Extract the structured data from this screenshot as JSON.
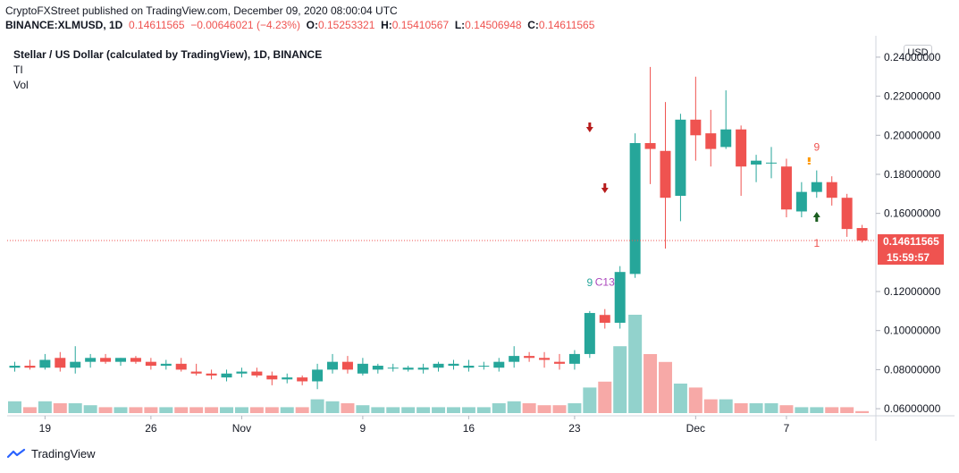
{
  "header": {
    "published_line": "CryptoFXStreet published on TradingView.com, December 09, 2020 08:00:04 UTC",
    "symbol": "BINANCE:XLMUSD, 1D",
    "price": "0.14611565",
    "change": "−0.00646021 (−4.23%)",
    "o_label": "O:",
    "o_value": "0.15253321",
    "h_label": "H:",
    "h_value": "0.15410567",
    "l_label": "L:",
    "l_value": "0.14506948",
    "c_label": "C:",
    "c_value": "0.14611565"
  },
  "legend": {
    "title": "Stellar / US Dollar (calculated by TradingView), 1D, BINANCE",
    "indicator": "TI",
    "volume": "Vol"
  },
  "currency_button": "USD",
  "price_tag": {
    "price": "0.14611565",
    "countdown": "15:59:57"
  },
  "brand": {
    "name": "TradingView"
  },
  "colors": {
    "up": "#26a69a",
    "down": "#ef5350",
    "vol_up": "#92d2cc",
    "vol_down": "#f7a9a7",
    "td_green": "#26a69a",
    "td_red": "#ef5350",
    "td_orange": "#ff9800",
    "td_purple": "#ab47bc"
  },
  "chart_data": {
    "type": "candlestick",
    "y_axis": {
      "ylim": [
        0.055,
        0.245
      ],
      "ticks": [
        "0.24000000",
        "0.22000000",
        "0.20000000",
        "0.18000000",
        "0.16000000",
        "0.12000000",
        "0.10000000",
        "0.08000000",
        "0.06000000"
      ]
    },
    "x_axis": {
      "ticks": [
        {
          "label": "19",
          "index": 2
        },
        {
          "label": "26",
          "index": 9
        },
        {
          "label": "Nov",
          "index": 15
        },
        {
          "label": "9",
          "index": 23
        },
        {
          "label": "16",
          "index": 30
        },
        {
          "label": "23",
          "index": 37
        },
        {
          "label": "Dec",
          "index": 45
        },
        {
          "label": "7",
          "index": 51
        }
      ]
    },
    "last_price": 0.14611565,
    "candles": [
      [
        0.081,
        0.084,
        0.079,
        0.082
      ],
      [
        0.082,
        0.085,
        0.08,
        0.081
      ],
      [
        0.081,
        0.088,
        0.08,
        0.085
      ],
      [
        0.086,
        0.089,
        0.079,
        0.081
      ],
      [
        0.081,
        0.092,
        0.078,
        0.084
      ],
      [
        0.084,
        0.088,
        0.081,
        0.086
      ],
      [
        0.086,
        0.088,
        0.083,
        0.084
      ],
      [
        0.084,
        0.086,
        0.082,
        0.086
      ],
      [
        0.086,
        0.087,
        0.083,
        0.084
      ],
      [
        0.084,
        0.086,
        0.08,
        0.082
      ],
      [
        0.082,
        0.085,
        0.08,
        0.083
      ],
      [
        0.083,
        0.086,
        0.079,
        0.08
      ],
      [
        0.079,
        0.083,
        0.077,
        0.078
      ],
      [
        0.078,
        0.08,
        0.075,
        0.077
      ],
      [
        0.076,
        0.08,
        0.074,
        0.078
      ],
      [
        0.078,
        0.081,
        0.076,
        0.079
      ],
      [
        0.079,
        0.081,
        0.076,
        0.077
      ],
      [
        0.077,
        0.079,
        0.072,
        0.075
      ],
      [
        0.075,
        0.078,
        0.073,
        0.076
      ],
      [
        0.076,
        0.077,
        0.072,
        0.074
      ],
      [
        0.074,
        0.083,
        0.07,
        0.08
      ],
      [
        0.08,
        0.088,
        0.078,
        0.084
      ],
      [
        0.084,
        0.087,
        0.078,
        0.08
      ],
      [
        0.078,
        0.086,
        0.077,
        0.083
      ],
      [
        0.08,
        0.083,
        0.078,
        0.082
      ],
      [
        0.081,
        0.083,
        0.079,
        0.081
      ],
      [
        0.08,
        0.082,
        0.079,
        0.081
      ],
      [
        0.08,
        0.083,
        0.078,
        0.081
      ],
      [
        0.081,
        0.084,
        0.079,
        0.083
      ],
      [
        0.082,
        0.085,
        0.08,
        0.083
      ],
      [
        0.081,
        0.085,
        0.079,
        0.082
      ],
      [
        0.082,
        0.084,
        0.08,
        0.082
      ],
      [
        0.081,
        0.086,
        0.079,
        0.084
      ],
      [
        0.084,
        0.092,
        0.081,
        0.087
      ],
      [
        0.087,
        0.089,
        0.084,
        0.086
      ],
      [
        0.086,
        0.089,
        0.081,
        0.085
      ],
      [
        0.084,
        0.088,
        0.08,
        0.083
      ],
      [
        0.083,
        0.09,
        0.08,
        0.088
      ],
      [
        0.088,
        0.11,
        0.086,
        0.109
      ],
      [
        0.108,
        0.111,
        0.101,
        0.104
      ],
      [
        0.104,
        0.133,
        0.101,
        0.13
      ],
      [
        0.129,
        0.201,
        0.127,
        0.196
      ],
      [
        0.196,
        0.235,
        0.175,
        0.193
      ],
      [
        0.192,
        0.217,
        0.142,
        0.168
      ],
      [
        0.169,
        0.211,
        0.156,
        0.208
      ],
      [
        0.208,
        0.23,
        0.187,
        0.2
      ],
      [
        0.201,
        0.213,
        0.184,
        0.193
      ],
      [
        0.194,
        0.223,
        0.193,
        0.203
      ],
      [
        0.203,
        0.205,
        0.169,
        0.184
      ],
      [
        0.185,
        0.19,
        0.176,
        0.187
      ],
      [
        0.186,
        0.194,
        0.178,
        0.186
      ],
      [
        0.184,
        0.188,
        0.158,
        0.162
      ],
      [
        0.161,
        0.176,
        0.158,
        0.171
      ],
      [
        0.171,
        0.182,
        0.168,
        0.176
      ],
      [
        0.176,
        0.179,
        0.164,
        0.168
      ],
      [
        0.168,
        0.17,
        0.148,
        0.152
      ],
      [
        0.1525,
        0.1541,
        0.1451,
        0.1461
      ]
    ],
    "volumes": [
      0.06,
      0.03,
      0.06,
      0.05,
      0.05,
      0.04,
      0.03,
      0.03,
      0.03,
      0.03,
      0.03,
      0.03,
      0.03,
      0.03,
      0.03,
      0.03,
      0.03,
      0.03,
      0.03,
      0.03,
      0.07,
      0.06,
      0.05,
      0.04,
      0.03,
      0.03,
      0.03,
      0.03,
      0.03,
      0.03,
      0.03,
      0.03,
      0.05,
      0.06,
      0.05,
      0.04,
      0.04,
      0.05,
      0.13,
      0.16,
      0.34,
      0.5,
      0.3,
      0.26,
      0.15,
      0.13,
      0.07,
      0.07,
      0.05,
      0.05,
      0.05,
      0.04,
      0.03,
      0.03,
      0.03,
      0.03,
      0.01
    ],
    "td_annotations": [
      {
        "text": "9",
        "index": 38,
        "position": "above",
        "color": "green"
      },
      {
        "text": "C13",
        "index": 39,
        "position": "below",
        "color": "purple"
      },
      {
        "text": "9",
        "index": 53,
        "position": "above",
        "color": "red"
      },
      {
        "text": "1",
        "index": 53,
        "position": "below",
        "color": "red"
      }
    ]
  }
}
